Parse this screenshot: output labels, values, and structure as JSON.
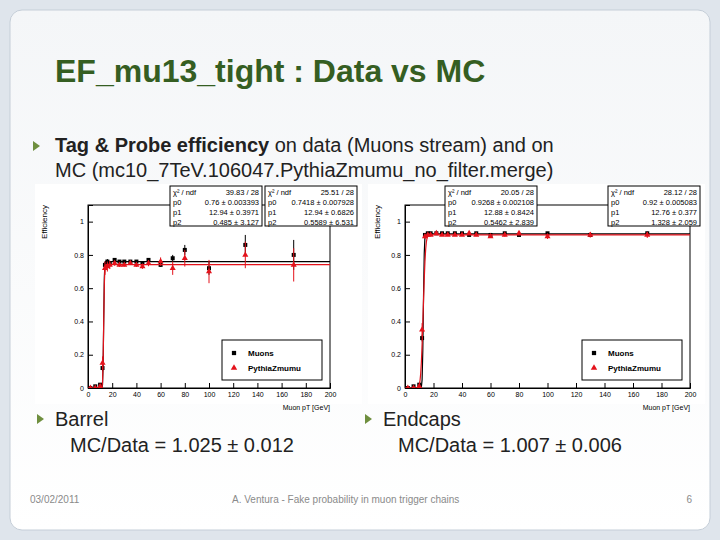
{
  "slide": {
    "title": "EF_mu13_tight : Data vs MC",
    "bullet": {
      "bold": "Tag & Probe efficiency",
      "rest_lines": [
        " on data (Muons stream) and on",
        "MC (mc10_7TeV.106047.PythiaZmumu_no_filter.merge)"
      ]
    },
    "panels": [
      {
        "label": "Barrel",
        "ratio": "MC/Data = 1.025 ± 0.012"
      },
      {
        "label": "Endcaps",
        "ratio": "MC/Data = 1.007 ± 0.006"
      }
    ],
    "footer": {
      "date": "03/02/2011",
      "text": "A. Ventura - Fake probability in muon trigger chains",
      "page": 6
    }
  },
  "chart_data": [
    {
      "type": "scatter",
      "x_label": "Muon pT [GeV]",
      "y_label": "Efficiency",
      "xlim": [
        0,
        200
      ],
      "xticks": [
        0,
        20,
        40,
        60,
        80,
        100,
        120,
        140,
        160,
        180,
        200
      ],
      "ylim": [
        0,
        1.1
      ],
      "yticks": [
        0,
        0.2,
        0.4,
        0.6,
        0.8,
        1
      ],
      "legend": "lower right",
      "fit_labels": [
        "χ² / ndf",
        "p0",
        "p1",
        "p2"
      ],
      "x": [
        2,
        6,
        10,
        12,
        14,
        16,
        18,
        22,
        26,
        30,
        35,
        40,
        45,
        50,
        60,
        70,
        80,
        100,
        130,
        170
      ],
      "series": [
        {
          "name": "Muons",
          "color": "#000000",
          "marker": "square",
          "values": [
            0.0,
            0.01,
            0.02,
            0.12,
            0.74,
            0.76,
            0.75,
            0.77,
            0.76,
            0.76,
            0.76,
            0.76,
            0.75,
            0.77,
            0.74,
            0.78,
            0.83,
            0.72,
            0.86,
            0.8
          ],
          "errors": [
            0.005,
            0.005,
            0.006,
            0.02,
            0.02,
            0.015,
            0.012,
            0.008,
            0.006,
            0.005,
            0.005,
            0.005,
            0.006,
            0.008,
            0.012,
            0.02,
            0.03,
            0.04,
            0.06,
            0.09
          ],
          "fit": {
            "chi2_label": "39.83 / 28",
            "params": [
              {
                "value": 0.76,
                "label": "0.76 ± 0.003393"
              },
              {
                "value": 12.94,
                "label": "12.94 ± 0.3971"
              },
              {
                "value": 0.485,
                "label": "0.485 ± 3.127"
              }
            ]
          }
        },
        {
          "name": "PythiaZmumu",
          "color": "#e4121b",
          "marker": "triangle",
          "values": [
            0.0,
            0.0,
            0.01,
            0.15,
            0.72,
            0.73,
            0.74,
            0.75,
            0.74,
            0.74,
            0.75,
            0.74,
            0.73,
            0.75,
            0.76,
            0.72,
            0.78,
            0.7,
            0.8,
            0.74
          ],
          "errors": [
            0.005,
            0.005,
            0.01,
            0.04,
            0.04,
            0.03,
            0.025,
            0.015,
            0.012,
            0.01,
            0.01,
            0.012,
            0.014,
            0.018,
            0.025,
            0.04,
            0.05,
            0.07,
            0.08,
            0.1
          ],
          "fit": {
            "chi2_label": "25.51 / 28",
            "params": [
              {
                "value": 0.7418,
                "label": "0.7418 ± 0.007928"
              },
              {
                "value": 12.94,
                "label": "12.94 ± 0.6826"
              },
              {
                "value": 0.5589,
                "label": "0.5589 ± 6.531"
              }
            ]
          }
        }
      ]
    },
    {
      "type": "scatter",
      "x_label": "Muon pT [GeV]",
      "y_label": "Efficiency",
      "xlim": [
        0,
        200
      ],
      "xticks": [
        0,
        20,
        40,
        60,
        80,
        100,
        120,
        140,
        160,
        180,
        200
      ],
      "ylim": [
        0,
        1.1
      ],
      "yticks": [
        0,
        0.2,
        0.4,
        0.6,
        0.8,
        1
      ],
      "legend": "lower right",
      "fit_labels": [
        "χ² / ndf",
        "p0",
        "p1",
        "p2"
      ],
      "x": [
        2,
        6,
        10,
        12,
        14,
        16,
        18,
        22,
        26,
        30,
        35,
        40,
        45,
        50,
        60,
        70,
        80,
        100,
        130,
        170
      ],
      "series": [
        {
          "name": "Muons",
          "color": "#000000",
          "marker": "square",
          "values": [
            0.0,
            0.01,
            0.02,
            0.3,
            0.92,
            0.93,
            0.93,
            0.93,
            0.93,
            0.93,
            0.93,
            0.93,
            0.92,
            0.93,
            0.92,
            0.93,
            0.92,
            0.93,
            0.92,
            0.93
          ],
          "errors": [
            0.004,
            0.004,
            0.005,
            0.02,
            0.008,
            0.005,
            0.004,
            0.003,
            0.003,
            0.003,
            0.003,
            0.003,
            0.003,
            0.004,
            0.004,
            0.005,
            0.006,
            0.007,
            0.008,
            0.01
          ],
          "fit": {
            "chi2_label": "20.05 / 28",
            "params": [
              {
                "value": 0.9268,
                "label": "0.9268 ± 0.002108"
              },
              {
                "value": 12.88,
                "label": "12.88 ± 0.8424"
              },
              {
                "value": 0.5462,
                "label": "0.5462 ± 2.839"
              }
            ]
          }
        },
        {
          "name": "PythiaZmumu",
          "color": "#e4121b",
          "marker": "triangle",
          "values": [
            0.0,
            0.0,
            0.01,
            0.35,
            0.91,
            0.92,
            0.92,
            0.93,
            0.92,
            0.92,
            0.92,
            0.92,
            0.93,
            0.92,
            0.91,
            0.92,
            0.93,
            0.91,
            0.92,
            0.92
          ],
          "errors": [
            0.005,
            0.005,
            0.008,
            0.04,
            0.015,
            0.01,
            0.008,
            0.006,
            0.005,
            0.005,
            0.005,
            0.005,
            0.006,
            0.007,
            0.008,
            0.01,
            0.012,
            0.014,
            0.016,
            0.018
          ],
          "fit": {
            "chi2_label": "28.12 / 28",
            "params": [
              {
                "value": 0.92,
                "label": "0.92 ± 0.005083"
              },
              {
                "value": 12.76,
                "label": "12.76 ± 0.377"
              },
              {
                "value": 1.328,
                "label": "1.328 ± 2.059"
              }
            ]
          }
        }
      ]
    }
  ]
}
